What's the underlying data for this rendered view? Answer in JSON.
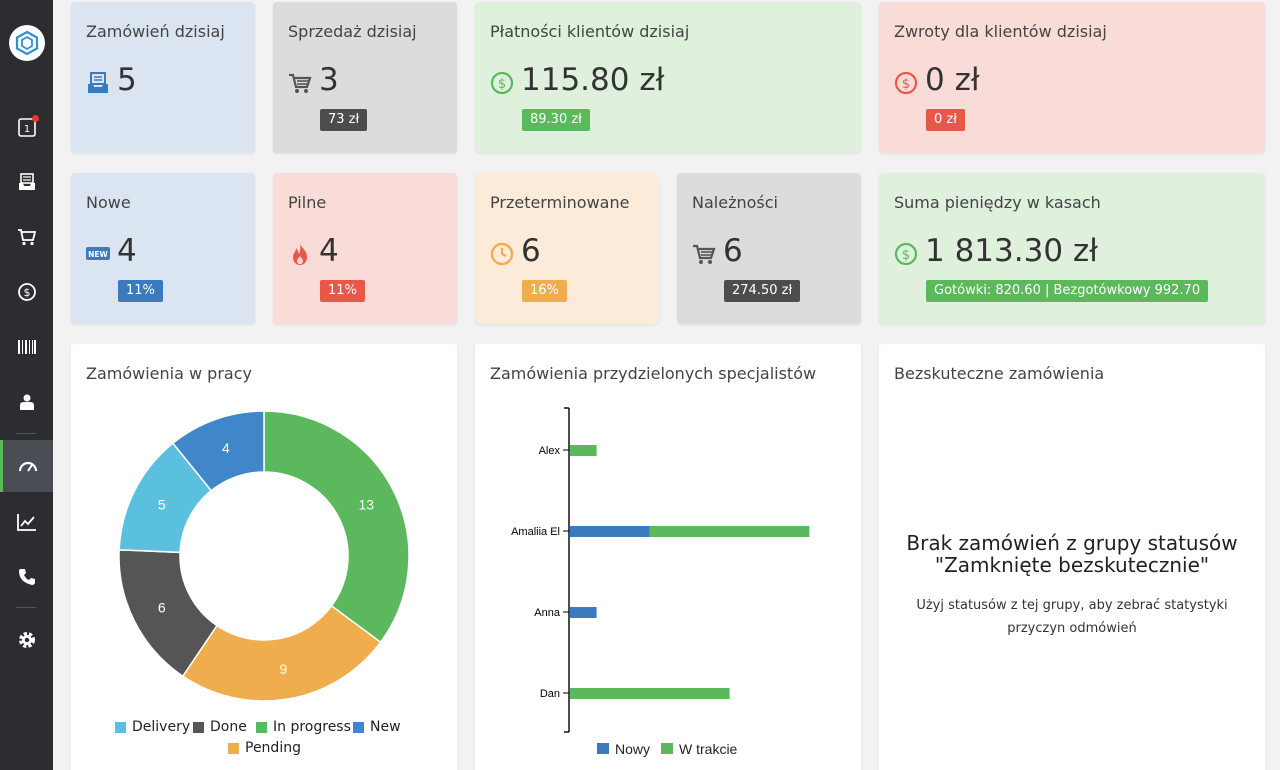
{
  "stats_top": [
    {
      "title": "Zamówień dzisiaj",
      "value": "5",
      "icon": "inbox-icon",
      "badge": ""
    },
    {
      "title": "Sprzedaż dzisiaj",
      "value": "3",
      "icon": "cart-icon",
      "badge": "73 zł"
    },
    {
      "title": "Płatności klientów dzisiaj",
      "value": "115.80 zł",
      "icon": "dollar-icon",
      "badge": "89.30 zł"
    },
    {
      "title": "Zwroty dla klientów dzisiaj",
      "value": "0 zł",
      "icon": "dollar-icon",
      "badge": "0 zł"
    }
  ],
  "stats_mid": [
    {
      "title": "Nowe",
      "value": "4",
      "icon": "new-icon",
      "badge": "11%"
    },
    {
      "title": "Pilne",
      "value": "4",
      "icon": "fire-icon",
      "badge": "11%"
    },
    {
      "title": "Przeterminowane",
      "value": "6",
      "icon": "clock-icon",
      "badge": "16%"
    },
    {
      "title": "Należności",
      "value": "6",
      "icon": "cart-icon",
      "badge": "274.50 zł"
    },
    {
      "title": "Suma pieniędzy w kasach",
      "value": "1 813.30 zł",
      "icon": "dollar-icon",
      "badge": "Gotówki: 820.60 | Bezgotówkowy 992.70"
    }
  ],
  "icons": {
    "new_text": "NEW"
  },
  "sidebar": {
    "badge_number": "1"
  },
  "donut": {
    "title": "Zamówienia w pracy",
    "chart_data": {
      "type": "pie",
      "categories": [
        "Delivery",
        "Done",
        "In progress",
        "New",
        "Pending"
      ],
      "values": [
        5,
        6,
        13,
        4,
        9
      ],
      "colors": {
        "Delivery": "#5bc0de",
        "Done": "#555555",
        "In progress": "#5cb85c",
        "New": "#3f87c9",
        "Pending": "#f0ad4e"
      }
    }
  },
  "bars": {
    "title": "Zamówienia przydzielonych specjalistów",
    "chart_data": {
      "type": "bar",
      "orientation": "horizontal",
      "stacked": true,
      "categories": [
        "Alex",
        "Amaliia El",
        "Anna",
        "Dan"
      ],
      "series": [
        {
          "name": "Nowy",
          "values": [
            0,
            3,
            1,
            0
          ],
          "color": "#3a7bbf"
        },
        {
          "name": "W trakcie",
          "values": [
            1,
            6,
            0,
            6
          ],
          "color": "#5cb85c"
        }
      ],
      "xlim": [
        0,
        9
      ]
    }
  },
  "empty": {
    "title": "Bezskuteczne zamówienia",
    "message_line1": "Brak zamówień z grupy statusów",
    "message_line2": "\"Zamknięte bezskutecznie\"",
    "hint_line1": "Użyj statusów z tej grupy, aby zebrać statystyki",
    "hint_line2": "przyczyn odmówień"
  }
}
